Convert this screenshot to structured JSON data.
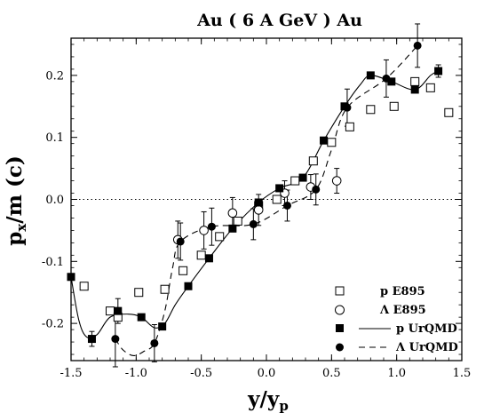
{
  "chart_data": {
    "type": "scatter",
    "title": "Au ( 6 A GeV ) Au",
    "xlabel": "y/y",
    "xlabel_sub": "p",
    "ylabel": "p",
    "ylabel_sub": "x",
    "ylabel_rest": "/m (c)",
    "xlim": [
      -1.5,
      1.5
    ],
    "ylim": [
      -0.26,
      0.26
    ],
    "x_ticks": [
      -1.5,
      -1.0,
      -0.5,
      0.0,
      0.5,
      1.0,
      1.5
    ],
    "x_tick_labels": [
      "-1.5",
      "-1.0",
      "-0.5",
      "0.0",
      "0.5",
      "1.0",
      "1.5"
    ],
    "y_ticks": [
      -0.2,
      -0.1,
      0.0,
      0.1,
      0.2
    ],
    "y_tick_labels": [
      "-0.2",
      "-0.1",
      "0.0",
      "0.1",
      "0.2"
    ],
    "zero_line": true,
    "legend_position": "bottom-right",
    "series": [
      {
        "name": "p E895",
        "marker": "open-square",
        "points": [
          {
            "x": -1.4,
            "y": -0.14
          },
          {
            "x": -1.2,
            "y": -0.18
          },
          {
            "x": -1.14,
            "y": -0.19
          },
          {
            "x": -0.98,
            "y": -0.15
          },
          {
            "x": -0.78,
            "y": -0.145
          },
          {
            "x": -0.64,
            "y": -0.115
          },
          {
            "x": -0.5,
            "y": -0.09
          },
          {
            "x": -0.36,
            "y": -0.06
          },
          {
            "x": -0.22,
            "y": -0.035
          },
          {
            "x": -0.06,
            "y": -0.01
          },
          {
            "x": 0.08,
            "y": 0.0
          },
          {
            "x": 0.22,
            "y": 0.03
          },
          {
            "x": 0.36,
            "y": 0.062
          },
          {
            "x": 0.5,
            "y": 0.092
          },
          {
            "x": 0.64,
            "y": 0.117
          },
          {
            "x": 0.8,
            "y": 0.145
          },
          {
            "x": 0.98,
            "y": 0.15
          },
          {
            "x": 1.14,
            "y": 0.19
          },
          {
            "x": 1.26,
            "y": 0.18
          },
          {
            "x": 1.4,
            "y": 0.14
          }
        ]
      },
      {
        "name": "Λ E895",
        "marker": "open-circle",
        "points": [
          {
            "x": -0.68,
            "y": -0.065,
            "err": 0.03
          },
          {
            "x": -0.48,
            "y": -0.05,
            "err": 0.03
          },
          {
            "x": -0.26,
            "y": -0.022,
            "err": 0.025
          },
          {
            "x": -0.06,
            "y": -0.017,
            "err": 0.025
          },
          {
            "x": 0.14,
            "y": 0.01,
            "err": 0.02
          },
          {
            "x": 0.34,
            "y": 0.02,
            "err": 0.02
          },
          {
            "x": 0.54,
            "y": 0.03,
            "err": 0.02
          }
        ]
      },
      {
        "name": "p UrQMD",
        "marker": "filled-square",
        "line": "solid",
        "points": [
          {
            "x": -1.5,
            "y": -0.125
          },
          {
            "x": -1.34,
            "y": -0.225,
            "err": 0.012
          },
          {
            "x": -1.14,
            "y": -0.18,
            "err": 0.02
          },
          {
            "x": -0.96,
            "y": -0.19
          },
          {
            "x": -0.8,
            "y": -0.205
          },
          {
            "x": -0.6,
            "y": -0.14
          },
          {
            "x": -0.44,
            "y": -0.095
          },
          {
            "x": -0.26,
            "y": -0.047
          },
          {
            "x": -0.06,
            "y": -0.005
          },
          {
            "x": 0.1,
            "y": 0.018
          },
          {
            "x": 0.28,
            "y": 0.035
          },
          {
            "x": 0.44,
            "y": 0.095
          },
          {
            "x": 0.6,
            "y": 0.15
          },
          {
            "x": 0.8,
            "y": 0.2
          },
          {
            "x": 0.96,
            "y": 0.19
          },
          {
            "x": 1.14,
            "y": 0.177
          },
          {
            "x": 1.32,
            "y": 0.207,
            "err": 0.01
          }
        ]
      },
      {
        "name": "Λ UrQMD",
        "marker": "filled-circle",
        "line": "dashed",
        "points": [
          {
            "x": -1.16,
            "y": -0.225,
            "err": 0.045
          },
          {
            "x": -0.86,
            "y": -0.232,
            "err": 0.03
          },
          {
            "x": -0.66,
            "y": -0.068,
            "err": 0.03
          },
          {
            "x": -0.42,
            "y": -0.044,
            "err": 0.03
          },
          {
            "x": -0.1,
            "y": -0.04,
            "err": 0.025
          },
          {
            "x": 0.16,
            "y": -0.01,
            "err": 0.025
          },
          {
            "x": 0.38,
            "y": 0.016,
            "err": 0.025
          },
          {
            "x": 0.62,
            "y": 0.148,
            "err": 0.03
          },
          {
            "x": 0.92,
            "y": 0.195,
            "err": 0.03
          },
          {
            "x": 1.16,
            "y": 0.248,
            "err": 0.035
          }
        ]
      }
    ],
    "curves": [
      {
        "series": "p UrQMD",
        "style": "solid",
        "points": [
          [
            -1.5,
            -0.125
          ],
          [
            -1.44,
            -0.195
          ],
          [
            -1.38,
            -0.222
          ],
          [
            -1.3,
            -0.218
          ],
          [
            -1.2,
            -0.19
          ],
          [
            -1.06,
            -0.185
          ],
          [
            -0.96,
            -0.19
          ],
          [
            -0.86,
            -0.207
          ],
          [
            -0.78,
            -0.2
          ],
          [
            -0.7,
            -0.17
          ],
          [
            -0.6,
            -0.14
          ],
          [
            -0.44,
            -0.095
          ],
          [
            -0.26,
            -0.047
          ],
          [
            -0.06,
            -0.005
          ],
          [
            0.1,
            0.018
          ],
          [
            0.28,
            0.035
          ],
          [
            0.44,
            0.095
          ],
          [
            0.6,
            0.15
          ],
          [
            0.72,
            0.185
          ],
          [
            0.8,
            0.2
          ],
          [
            0.96,
            0.19
          ],
          [
            1.14,
            0.177
          ],
          [
            1.26,
            0.2
          ],
          [
            1.32,
            0.207
          ]
        ]
      },
      {
        "series": "Λ UrQMD",
        "style": "dashed",
        "points": [
          [
            -1.16,
            -0.225
          ],
          [
            -1.1,
            -0.243
          ],
          [
            -1.02,
            -0.252
          ],
          [
            -0.94,
            -0.245
          ],
          [
            -0.86,
            -0.232
          ],
          [
            -0.78,
            -0.18
          ],
          [
            -0.72,
            -0.11
          ],
          [
            -0.66,
            -0.068
          ],
          [
            -0.42,
            -0.044
          ],
          [
            -0.1,
            -0.04
          ],
          [
            0.16,
            -0.01
          ],
          [
            0.38,
            0.016
          ],
          [
            0.5,
            0.08
          ],
          [
            0.62,
            0.148
          ],
          [
            0.92,
            0.195
          ],
          [
            1.16,
            0.248
          ]
        ]
      }
    ]
  }
}
